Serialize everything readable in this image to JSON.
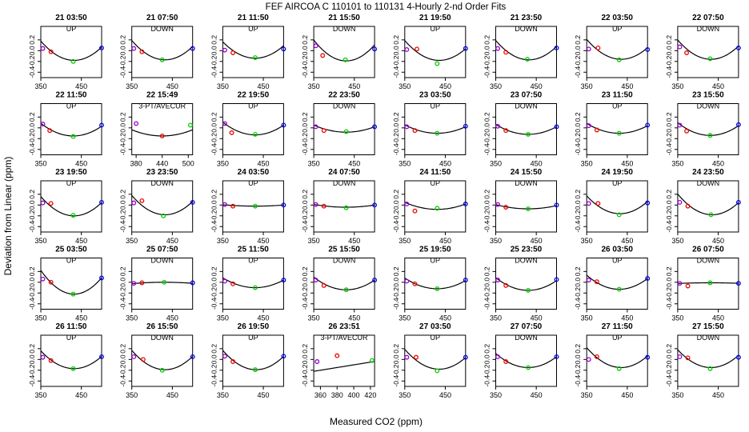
{
  "figure": {
    "title": "FEF   AIRCOA C   110101 to 110131   4-Hourly 2-nd Order Fits",
    "xlabel": "Measured CO2 (ppm)",
    "ylabel": "Deviation from Linear (ppm)"
  },
  "colors": {
    "curve": "#000000",
    "p1": "#9900cc",
    "p2": "#ee0000",
    "p3": "#00cc00",
    "p4": "#0000ee",
    "axis": "#000000"
  },
  "default_panel": {
    "xlim": [
      350,
      500
    ],
    "xticks": [
      350,
      450
    ],
    "ylim": [
      -0.5,
      0.45
    ],
    "yticks": [
      0.2,
      0,
      -0.2,
      -0.4
    ],
    "ytick_labels": [
      "0.2",
      "0.0",
      "-0.2",
      "-0.4"
    ]
  },
  "chart_data": [
    {
      "type": "scatter",
      "title": "21 03:50",
      "label": "UP",
      "a": 5.33e-05,
      "c": -0.18,
      "vx": 432,
      "points": [
        [
          355,
          0.04
        ],
        [
          375,
          -0.02
        ],
        [
          430,
          -0.2
        ],
        [
          500,
          0.05
        ]
      ]
    },
    {
      "type": "scatter",
      "title": "21 07:50",
      "label": "DOWN",
      "a": 5.33e-05,
      "c": -0.17,
      "vx": 432,
      "points": [
        [
          355,
          0.04
        ],
        [
          375,
          -0.02
        ],
        [
          425,
          -0.17
        ],
        [
          500,
          0.04
        ]
      ]
    },
    {
      "type": "scatter",
      "title": "21 11:50",
      "label": "UP",
      "a": 4.73e-05,
      "c": -0.14,
      "vx": 430,
      "points": [
        [
          355,
          0.01
        ],
        [
          375,
          -0.04
        ],
        [
          430,
          -0.13
        ],
        [
          500,
          0.03
        ]
      ]
    },
    {
      "type": "scatter",
      "title": "21 15:50",
      "label": "DOWN",
      "a": 6.06e-05,
      "c": -0.19,
      "vx": 430,
      "points": [
        [
          355,
          0.09
        ],
        [
          372,
          -0.09
        ],
        [
          428,
          -0.17
        ],
        [
          500,
          0.03
        ]
      ]
    },
    {
      "type": "scatter",
      "title": "21 19:50",
      "label": "UP",
      "a": 5.1e-05,
      "c": -0.18,
      "vx": 435,
      "points": [
        [
          355,
          0.02
        ],
        [
          380,
          0.03
        ],
        [
          430,
          -0.24
        ],
        [
          500,
          0.04
        ]
      ]
    },
    {
      "type": "scatter",
      "title": "21 23:50",
      "label": "DOWN",
      "a": 5.33e-05,
      "c": -0.17,
      "vx": 432,
      "points": [
        [
          355,
          0.04
        ],
        [
          375,
          -0.03
        ],
        [
          428,
          -0.16
        ],
        [
          500,
          0.05
        ]
      ]
    },
    {
      "type": "scatter",
      "title": "22 03:50",
      "label": "UP",
      "a": 5.1e-05,
      "c": -0.16,
      "vx": 435,
      "points": [
        [
          355,
          0.03
        ],
        [
          378,
          0.05
        ],
        [
          430,
          -0.17
        ],
        [
          500,
          0.02
        ]
      ]
    },
    {
      "type": "scatter",
      "title": "22 07:50",
      "label": "DOWN",
      "a": 5.33e-05,
      "c": -0.16,
      "vx": 432,
      "points": [
        [
          355,
          0.07
        ],
        [
          372,
          -0.04
        ],
        [
          430,
          -0.15
        ],
        [
          500,
          0.05
        ]
      ]
    },
    {
      "type": "scatter",
      "title": "22 11:50",
      "label": "UP",
      "a": 3.68e-05,
      "c": -0.15,
      "vx": 430,
      "points": [
        [
          355,
          0.07
        ],
        [
          372,
          -0.05
        ],
        [
          430,
          -0.16
        ],
        [
          500,
          0.05
        ]
      ]
    },
    {
      "type": "scatter",
      "title": "22 15:49",
      "label": "3-PT/AVECUR",
      "a": 2.33e-05,
      "c": -0.15,
      "vx": 440,
      "xlim": [
        370,
        510
      ],
      "xticks": [
        380,
        440,
        500
      ],
      "points": [
        [
          380,
          0.08
        ],
        [
          440,
          -0.15
        ],
        [
          505,
          0.05
        ]
      ]
    },
    {
      "type": "scatter",
      "title": "22 19:50",
      "label": "UP",
      "a": 3.68e-05,
      "c": -0.13,
      "vx": 430,
      "points": [
        [
          355,
          0.08
        ],
        [
          372,
          -0.09
        ],
        [
          430,
          -0.12
        ],
        [
          500,
          0.05
        ]
      ]
    },
    {
      "type": "scatter",
      "title": "22 23:50",
      "label": "DOWN",
      "a": 2.04e-05,
      "c": -0.08,
      "vx": 430,
      "points": [
        [
          355,
          0.02
        ],
        [
          375,
          -0.05
        ],
        [
          430,
          -0.07
        ],
        [
          500,
          0.02
        ]
      ]
    },
    {
      "type": "scatter",
      "title": "23 03:50",
      "label": "UP",
      "a": 2.45e-05,
      "c": -0.1,
      "vx": 430,
      "points": [
        [
          355,
          0.02
        ],
        [
          375,
          -0.05
        ],
        [
          430,
          -0.1
        ],
        [
          500,
          0.03
        ]
      ]
    },
    {
      "type": "scatter",
      "title": "23 07:50",
      "label": "DOWN",
      "a": 2.86e-05,
      "c": -0.12,
      "vx": 430,
      "points": [
        [
          355,
          0.03
        ],
        [
          375,
          -0.05
        ],
        [
          430,
          -0.12
        ],
        [
          500,
          0.02
        ]
      ]
    },
    {
      "type": "scatter",
      "title": "23 11:50",
      "label": "UP",
      "a": 2.86e-05,
      "c": -0.1,
      "vx": 430,
      "points": [
        [
          355,
          0.04
        ],
        [
          375,
          -0.04
        ],
        [
          430,
          -0.1
        ],
        [
          500,
          0.05
        ]
      ]
    },
    {
      "type": "scatter",
      "title": "23 15:50",
      "label": "DOWN",
      "a": 3.68e-05,
      "c": -0.14,
      "vx": 430,
      "points": [
        [
          355,
          0.05
        ],
        [
          372,
          -0.06
        ],
        [
          430,
          -0.14
        ],
        [
          500,
          0.06
        ]
      ]
    },
    {
      "type": "scatter",
      "title": "23 19:50",
      "label": "UP",
      "a": 5.33e-05,
      "c": -0.2,
      "vx": 432,
      "points": [
        [
          355,
          0.04
        ],
        [
          375,
          0.03
        ],
        [
          430,
          -0.19
        ],
        [
          500,
          0.05
        ]
      ]
    },
    {
      "type": "scatter",
      "title": "23 23:50",
      "label": "DOWN",
      "a": 5.33e-05,
      "c": -0.18,
      "vx": 432,
      "points": [
        [
          355,
          0.04
        ],
        [
          375,
          0.08
        ],
        [
          428,
          -0.2
        ],
        [
          500,
          0.05
        ]
      ]
    },
    {
      "type": "scatter",
      "title": "24 03:50",
      "label": "UP",
      "a": 4.1e-06,
      "c": -0.02,
      "vx": 430,
      "points": [
        [
          355,
          0.01
        ],
        [
          375,
          -0.02
        ],
        [
          430,
          -0.02
        ],
        [
          500,
          0.0
        ]
      ]
    },
    {
      "type": "scatter",
      "title": "24 07:50",
      "label": "DOWN",
      "a": 8.2e-06,
      "c": -0.04,
      "vx": 430,
      "points": [
        [
          355,
          0.01
        ],
        [
          375,
          -0.02
        ],
        [
          430,
          -0.05
        ],
        [
          500,
          0.0
        ]
      ]
    },
    {
      "type": "scatter",
      "title": "24 11:50",
      "label": "UP",
      "a": 2.04e-05,
      "c": -0.08,
      "vx": 430,
      "points": [
        [
          355,
          0.02
        ],
        [
          375,
          -0.11
        ],
        [
          430,
          -0.06
        ],
        [
          500,
          0.02
        ]
      ]
    },
    {
      "type": "scatter",
      "title": "24 15:50",
      "label": "DOWN",
      "a": 1.22e-05,
      "c": -0.07,
      "vx": 430,
      "points": [
        [
          355,
          0.01
        ],
        [
          375,
          -0.04
        ],
        [
          430,
          -0.07
        ],
        [
          500,
          0.0
        ]
      ]
    },
    {
      "type": "scatter",
      "title": "24 19:50",
      "label": "UP",
      "a": 4.9e-05,
      "c": -0.16,
      "vx": 432,
      "points": [
        [
          355,
          0.03
        ],
        [
          378,
          0.03
        ],
        [
          430,
          -0.18
        ],
        [
          500,
          0.04
        ]
      ]
    },
    {
      "type": "scatter",
      "title": "24 23:50",
      "label": "DOWN",
      "a": 5.33e-05,
      "c": -0.18,
      "vx": 435,
      "points": [
        [
          355,
          0.05
        ],
        [
          375,
          -0.02
        ],
        [
          432,
          -0.18
        ],
        [
          500,
          0.05
        ]
      ]
    },
    {
      "type": "scatter",
      "title": "25 03:50",
      "label": "UP",
      "a": 6.56e-05,
      "c": -0.22,
      "vx": 432,
      "points": [
        [
          355,
          0.06
        ],
        [
          375,
          0.0
        ],
        [
          430,
          -0.22
        ],
        [
          500,
          0.08
        ]
      ]
    },
    {
      "type": "scatter",
      "title": "25 07:50",
      "label": "DOWN",
      "a": -4.1e-06,
      "c": 0.0,
      "vx": 430,
      "points": [
        [
          355,
          -0.02
        ],
        [
          375,
          -0.01
        ],
        [
          430,
          0.0
        ],
        [
          500,
          -0.01
        ]
      ]
    },
    {
      "type": "scatter",
      "title": "25 11:50",
      "label": "UP",
      "a": 2.86e-05,
      "c": -0.1,
      "vx": 430,
      "points": [
        [
          355,
          0.02
        ],
        [
          375,
          -0.03
        ],
        [
          430,
          -0.1
        ],
        [
          500,
          0.04
        ]
      ]
    },
    {
      "type": "scatter",
      "title": "25 15:50",
      "label": "DOWN",
      "a": 3.68e-05,
      "c": -0.14,
      "vx": 430,
      "points": [
        [
          355,
          0.04
        ],
        [
          375,
          -0.06
        ],
        [
          430,
          -0.14
        ],
        [
          500,
          0.04
        ]
      ]
    },
    {
      "type": "scatter",
      "title": "25 19:50",
      "label": "UP",
      "a": 3.1e-05,
      "c": -0.12,
      "vx": 430,
      "points": [
        [
          355,
          0.02
        ],
        [
          375,
          -0.03
        ],
        [
          430,
          -0.12
        ],
        [
          500,
          0.04
        ]
      ]
    },
    {
      "type": "scatter",
      "title": "25 23:50",
      "label": "DOWN",
      "a": 3.68e-05,
      "c": -0.15,
      "vx": 430,
      "points": [
        [
          355,
          0.04
        ],
        [
          375,
          -0.06
        ],
        [
          430,
          -0.15
        ],
        [
          500,
          0.05
        ]
      ]
    },
    {
      "type": "scatter",
      "title": "26 03:50",
      "label": "UP",
      "a": 4.08e-05,
      "c": -0.13,
      "vx": 430,
      "points": [
        [
          355,
          0.04
        ],
        [
          375,
          0.01
        ],
        [
          430,
          -0.13
        ],
        [
          500,
          0.07
        ]
      ]
    },
    {
      "type": "scatter",
      "title": "26 07:50",
      "label": "DOWN",
      "a": -2e-06,
      "c": -0.01,
      "vx": 430,
      "points": [
        [
          355,
          -0.02
        ],
        [
          375,
          -0.07
        ],
        [
          430,
          -0.01
        ],
        [
          500,
          -0.02
        ]
      ]
    },
    {
      "type": "scatter",
      "title": "26 11:50",
      "label": "UP",
      "a": 4.9e-05,
      "c": -0.17,
      "vx": 432,
      "points": [
        [
          355,
          0.04
        ],
        [
          375,
          -0.02
        ],
        [
          430,
          -0.17
        ],
        [
          500,
          0.05
        ]
      ]
    },
    {
      "type": "scatter",
      "title": "26 15:50",
      "label": "DOWN",
      "a": 5.33e-05,
      "c": -0.19,
      "vx": 432,
      "points": [
        [
          355,
          0.05
        ],
        [
          378,
          0.0
        ],
        [
          425,
          -0.2
        ],
        [
          500,
          0.05
        ]
      ]
    },
    {
      "type": "scatter",
      "title": "26 19:50",
      "label": "UP",
      "a": 5.33e-05,
      "c": -0.19,
      "vx": 432,
      "points": [
        [
          355,
          0.06
        ],
        [
          375,
          -0.04
        ],
        [
          430,
          -0.19
        ],
        [
          500,
          0.06
        ]
      ]
    },
    {
      "type": "scatter",
      "title": "26 23:51",
      "label": "3-PT/AVECUR",
      "a": 0.0,
      "c": 0.0,
      "vx": 0,
      "m": 0.0025,
      "b": -1.1,
      "xlim": [
        352,
        425
      ],
      "xticks": [
        360,
        380,
        400,
        420
      ],
      "points": [
        [
          356,
          -0.04
        ],
        [
          380,
          0.07
        ],
        [
          422,
          -0.02
        ]
      ]
    },
    {
      "type": "scatter",
      "title": "27 03:50",
      "label": "UP",
      "a": 5.1e-05,
      "c": -0.18,
      "vx": 435,
      "points": [
        [
          355,
          0.04
        ],
        [
          378,
          0.04
        ],
        [
          430,
          -0.21
        ],
        [
          500,
          0.04
        ]
      ]
    },
    {
      "type": "scatter",
      "title": "27 07:50",
      "label": "DOWN",
      "a": 4.08e-05,
      "c": -0.15,
      "vx": 430,
      "points": [
        [
          355,
          0.05
        ],
        [
          375,
          -0.04
        ],
        [
          430,
          -0.15
        ],
        [
          500,
          0.05
        ]
      ]
    },
    {
      "type": "scatter",
      "title": "27 11:50",
      "label": "UP",
      "a": 5.1e-05,
      "c": -0.15,
      "vx": 435,
      "points": [
        [
          355,
          0.0
        ],
        [
          375,
          0.05
        ],
        [
          430,
          -0.17
        ],
        [
          500,
          0.04
        ]
      ]
    },
    {
      "type": "scatter",
      "title": "27 15:50",
      "label": "DOWN",
      "a": 4.9e-05,
      "c": -0.15,
      "vx": 432,
      "points": [
        [
          355,
          0.05
        ],
        [
          375,
          0.03
        ],
        [
          430,
          -0.17
        ],
        [
          500,
          0.04
        ]
      ]
    }
  ]
}
